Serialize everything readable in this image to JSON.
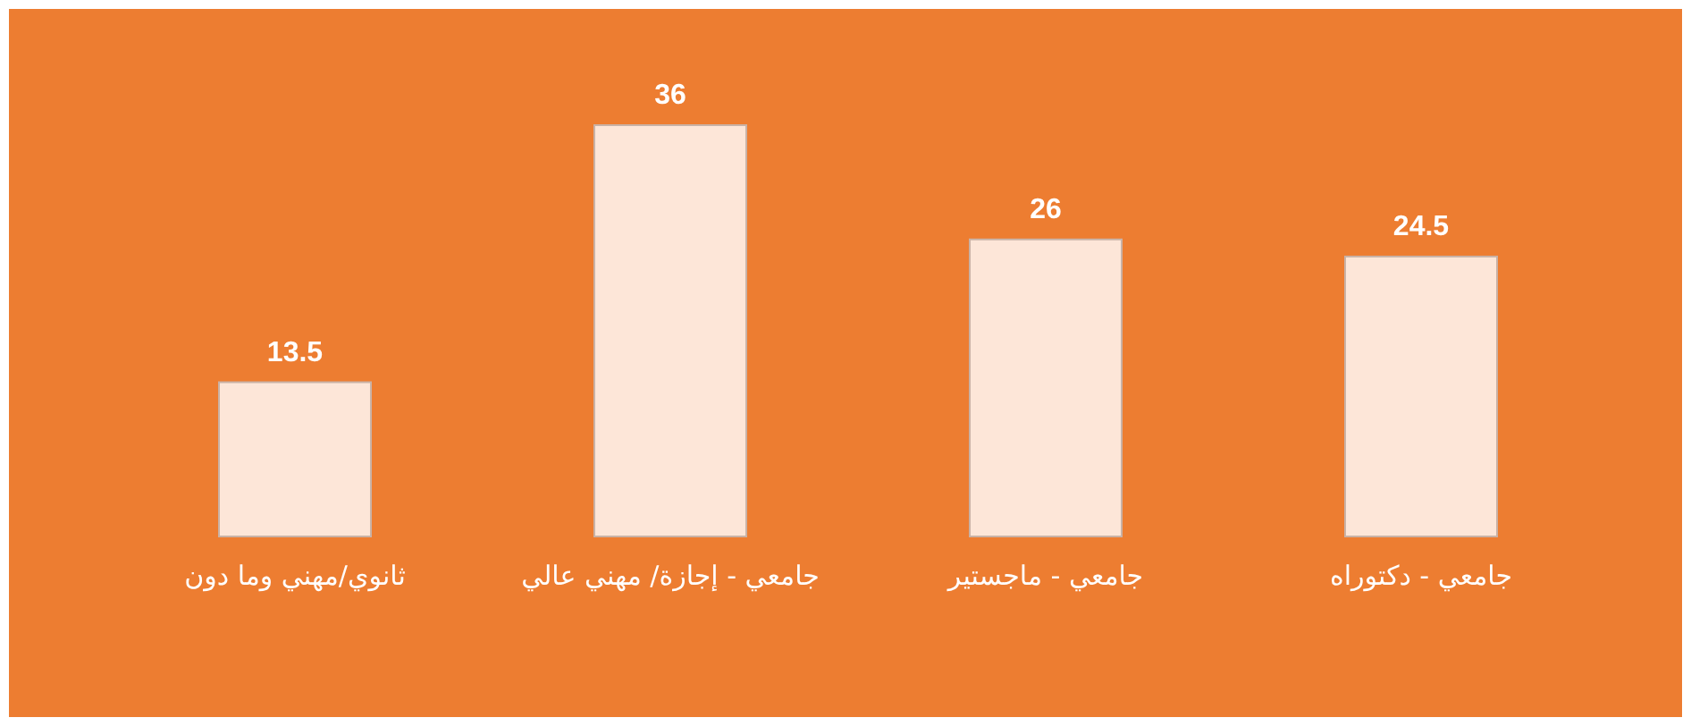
{
  "chart_data": {
    "type": "bar",
    "categories": [
      "ثانوي/مهني وما دون",
      "جامعي - إجازة/ مهني عالي",
      "جامعي - ماجستير",
      "جامعي - دكتوراه"
    ],
    "values": [
      13.5,
      36,
      26,
      24.5
    ],
    "color": "#fde6d8",
    "data_labels": true
  }
}
